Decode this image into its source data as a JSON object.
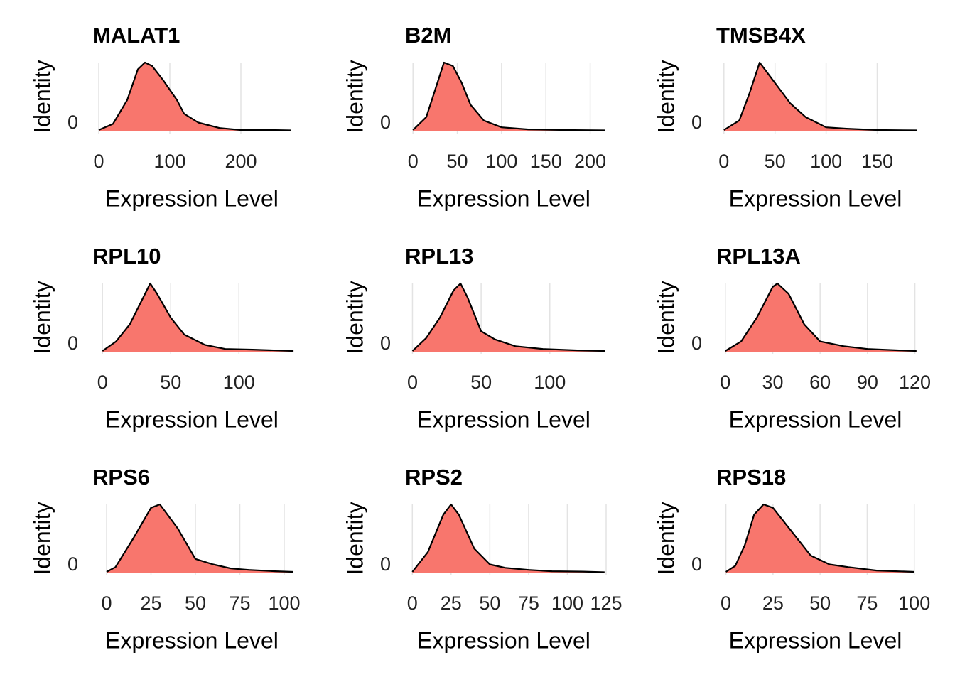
{
  "chart_data": [
    {
      "type": "area",
      "title": "MALAT1",
      "xlabel": "Expression Level",
      "ylabel": "Identity",
      "color": "#f8766d",
      "grid": true,
      "x": [
        0,
        20,
        40,
        55,
        65,
        75,
        90,
        110,
        120,
        140,
        170,
        200,
        240,
        270
      ],
      "values": [
        0.01,
        0.1,
        0.45,
        0.9,
        1.0,
        0.95,
        0.75,
        0.45,
        0.25,
        0.12,
        0.04,
        0.01,
        0.01,
        0.005
      ],
      "xlim": [
        -14,
        276
      ],
      "xticks": [
        0,
        100,
        200
      ],
      "ylim": [
        0,
        1
      ],
      "yticks": [
        0
      ]
    },
    {
      "type": "area",
      "title": "B2M",
      "xlabel": "Expression Level",
      "ylabel": "Identity",
      "color": "#f8766d",
      "grid": true,
      "x": [
        0,
        15,
        25,
        35,
        45,
        55,
        65,
        80,
        100,
        130,
        170,
        217
      ],
      "values": [
        0.01,
        0.2,
        0.6,
        1.0,
        0.95,
        0.7,
        0.38,
        0.15,
        0.05,
        0.02,
        0.01,
        0.005
      ],
      "xlim": [
        -13,
        218
      ],
      "xticks": [
        0,
        50,
        100,
        150,
        200
      ],
      "ylim": [
        0,
        1
      ],
      "yticks": [
        0
      ]
    },
    {
      "type": "area",
      "title": "TMSB4X",
      "xlabel": "Expression Level",
      "ylabel": "Identity",
      "color": "#f8766d",
      "grid": true,
      "x": [
        0,
        15,
        25,
        35,
        45,
        55,
        65,
        80,
        100,
        120,
        150,
        189
      ],
      "values": [
        0.01,
        0.15,
        0.55,
        1.0,
        0.8,
        0.6,
        0.4,
        0.2,
        0.05,
        0.03,
        0.01,
        0.005
      ],
      "xlim": [
        -11,
        190
      ],
      "xticks": [
        0,
        50,
        100,
        150
      ],
      "ylim": [
        0,
        1
      ],
      "yticks": [
        0
      ]
    },
    {
      "type": "area",
      "title": "RPL10",
      "xlabel": "Expression Level",
      "ylabel": "Identity",
      "color": "#f8766d",
      "grid": true,
      "x": [
        0,
        10,
        20,
        30,
        35,
        40,
        50,
        60,
        75,
        90,
        110,
        140
      ],
      "values": [
        0.01,
        0.15,
        0.4,
        0.8,
        1.0,
        0.85,
        0.5,
        0.25,
        0.1,
        0.04,
        0.03,
        0.01
      ],
      "xlim": [
        -10,
        141
      ],
      "xticks": [
        0,
        50,
        100
      ],
      "ylim": [
        0,
        1
      ],
      "yticks": [
        0
      ]
    },
    {
      "type": "area",
      "title": "RPL13",
      "xlabel": "Expression Level",
      "ylabel": "Identity",
      "color": "#f8766d",
      "grid": true,
      "x": [
        0,
        10,
        20,
        30,
        35,
        40,
        50,
        60,
        75,
        95,
        120,
        140
      ],
      "values": [
        0.01,
        0.2,
        0.5,
        0.9,
        1.0,
        0.8,
        0.3,
        0.18,
        0.08,
        0.04,
        0.02,
        0.01
      ],
      "xlim": [
        -8,
        141
      ],
      "xticks": [
        0,
        50,
        100
      ],
      "ylim": [
        0,
        1
      ],
      "yticks": [
        0
      ]
    },
    {
      "type": "area",
      "title": "RPL13A",
      "xlabel": "Expression Level",
      "ylabel": "Identity",
      "color": "#f8766d",
      "grid": true,
      "x": [
        0,
        10,
        20,
        30,
        33,
        40,
        50,
        60,
        75,
        90,
        110,
        121
      ],
      "values": [
        0.01,
        0.15,
        0.5,
        0.95,
        1.0,
        0.85,
        0.4,
        0.15,
        0.08,
        0.04,
        0.02,
        0.01
      ],
      "xlim": [
        -8,
        122
      ],
      "xticks": [
        0,
        30,
        60,
        90,
        120
      ],
      "ylim": [
        0,
        1
      ],
      "yticks": [
        0
      ]
    },
    {
      "type": "area",
      "title": "RPS6",
      "xlabel": "Expression Level",
      "ylabel": "Identity",
      "color": "#f8766d",
      "grid": true,
      "x": [
        0,
        5,
        15,
        25,
        30,
        40,
        50,
        60,
        70,
        80,
        95,
        105
      ],
      "values": [
        0.01,
        0.08,
        0.5,
        0.95,
        1.0,
        0.65,
        0.2,
        0.12,
        0.06,
        0.04,
        0.02,
        0.01
      ],
      "xlim": [
        -10,
        106
      ],
      "xticks": [
        0,
        25,
        50,
        75,
        100
      ],
      "ylim": [
        0,
        1
      ],
      "yticks": [
        0
      ]
    },
    {
      "type": "area",
      "title": "RPS2",
      "xlabel": "Expression Level",
      "ylabel": "Identity",
      "color": "#f8766d",
      "grid": true,
      "x": [
        0,
        10,
        20,
        25,
        30,
        40,
        50,
        60,
        75,
        90,
        110,
        124
      ],
      "values": [
        0.01,
        0.3,
        0.85,
        1.0,
        0.85,
        0.35,
        0.12,
        0.07,
        0.04,
        0.02,
        0.015,
        0.005
      ],
      "xlim": [
        -7,
        125
      ],
      "xticks": [
        0,
        25,
        50,
        75,
        100,
        125
      ],
      "ylim": [
        0,
        1
      ],
      "yticks": [
        0
      ]
    },
    {
      "type": "area",
      "title": "RPS18",
      "xlabel": "Expression Level",
      "ylabel": "Identity",
      "color": "#f8766d",
      "grid": true,
      "x": [
        0,
        5,
        10,
        15,
        20,
        25,
        35,
        45,
        55,
        65,
        80,
        100
      ],
      "values": [
        0.01,
        0.1,
        0.4,
        0.85,
        1.0,
        0.95,
        0.6,
        0.25,
        0.12,
        0.08,
        0.03,
        0.01
      ],
      "xlim": [
        -7,
        102
      ],
      "xticks": [
        0,
        25,
        50,
        75,
        100
      ],
      "ylim": [
        0,
        1
      ],
      "yticks": [
        0
      ]
    }
  ]
}
